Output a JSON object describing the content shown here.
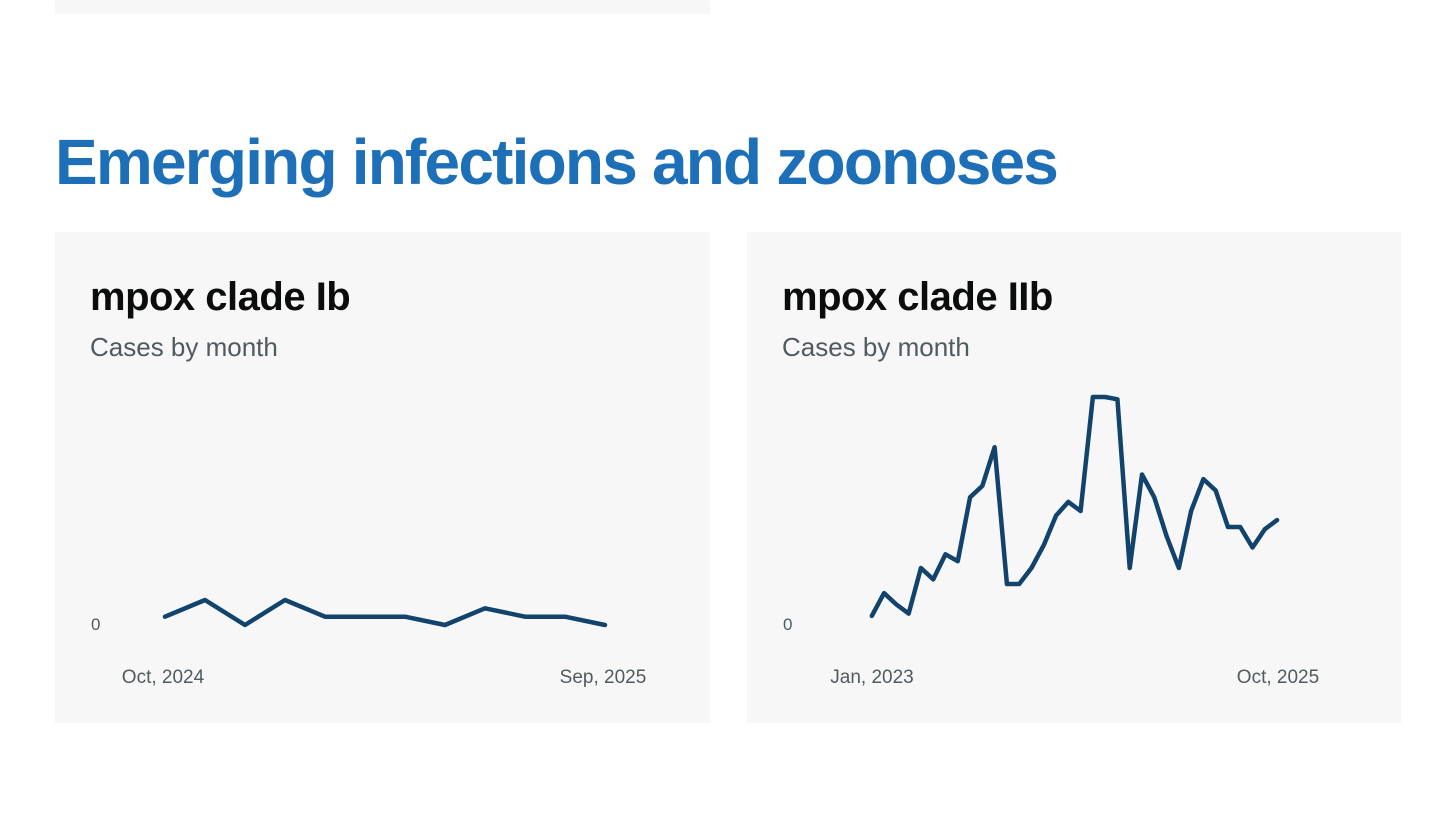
{
  "page": {
    "heading": "Emerging infections and zoonoses",
    "colors": {
      "page_background": "#ffffff",
      "heading": "#1d70b8",
      "card_background": "#f7f7f7",
      "line": "#12436d",
      "title_text": "#0b0c0c",
      "muted_text": "#505a5f"
    }
  },
  "cards": [
    {
      "title": "mpox clade Ib",
      "subtitle": "Cases by month",
      "y_zero_label": "0",
      "x_start_label": "Oct, 2024",
      "x_end_label": "Sep, 2025"
    },
    {
      "title": "mpox clade IIb",
      "subtitle": "Cases by month",
      "y_zero_label": "0",
      "x_start_label": "Jan, 2023",
      "x_end_label": "Oct, 2025"
    }
  ],
  "chart_data": [
    {
      "type": "line",
      "title": "mpox clade Ib",
      "subtitle": "Cases by month",
      "x": [
        "Oct 2024",
        "Nov 2024",
        "Dec 2024",
        "Jan 2025",
        "Feb 2025",
        "Mar 2025",
        "Apr 2025",
        "May 2025",
        "Jun 2025",
        "Jul 2025",
        "Aug 2025",
        "Sep 2025"
      ],
      "values": [
        1,
        3,
        0,
        3,
        1,
        1,
        1,
        0,
        2,
        1,
        1,
        0
      ],
      "x_tick_labels_shown": [
        "Oct, 2024",
        "Sep, 2025"
      ],
      "y_tick_labels_shown": [
        "0"
      ],
      "ylim": [
        0,
        3
      ],
      "line_color": "#12436d",
      "grid": false,
      "legend": "none"
    },
    {
      "type": "line",
      "title": "mpox clade IIb",
      "subtitle": "Cases by month",
      "x": [
        "Jan 2023",
        "Feb 2023",
        "Mar 2023",
        "Apr 2023",
        "May 2023",
        "Jun 2023",
        "Jul 2023",
        "Aug 2023",
        "Sep 2023",
        "Oct 2023",
        "Nov 2023",
        "Dec 2023",
        "Jan 2024",
        "Feb 2024",
        "Mar 2024",
        "Apr 2024",
        "May 2024",
        "Jun 2024",
        "Jul 2024",
        "Aug 2024",
        "Sep 2024",
        "Oct 2024",
        "Nov 2024",
        "Dec 2024",
        "Jan 2025",
        "Feb 2025",
        "Mar 2025",
        "Apr 2025",
        "May 2025",
        "Jun 2025",
        "Jul 2025",
        "Aug 2025",
        "Sep 2025",
        "Oct 2025"
      ],
      "values": [
        4,
        14,
        9,
        5,
        25,
        20,
        31,
        28,
        56,
        61,
        78,
        18,
        18,
        25,
        35,
        48,
        54,
        50,
        100,
        100,
        99,
        25,
        66,
        56,
        39,
        25,
        50,
        64,
        59,
        43,
        43,
        34,
        42,
        46
      ],
      "x_tick_labels_shown": [
        "Jan, 2023",
        "Oct, 2025"
      ],
      "y_tick_labels_shown": [
        "0"
      ],
      "ylim": [
        0,
        100
      ],
      "line_color": "#12436d",
      "grid": false,
      "legend": "none"
    }
  ]
}
